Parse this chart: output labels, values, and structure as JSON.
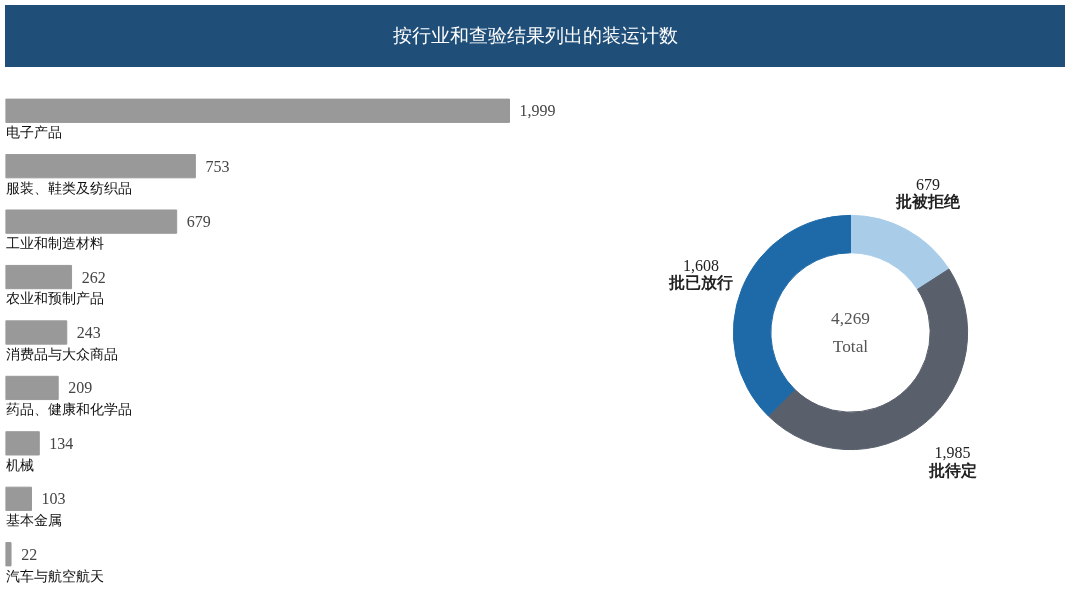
{
  "chart_data": [
    {
      "type": "bar",
      "orientation": "horizontal",
      "title": "按行业和查验结果列出的装运计数",
      "categories": [
        "电子产品",
        "服装、鞋类及纺织品",
        "工业和制造材料",
        "农业和预制产品",
        "消费品与大众商品",
        "药品、健康和化学品",
        "机械",
        "基本金属",
        "汽车与航空航天"
      ],
      "values": [
        1999,
        753,
        679,
        262,
        243,
        209,
        134,
        103,
        22
      ],
      "value_labels": [
        "1,999",
        "753",
        "679",
        "262",
        "243",
        "209",
        "134",
        "103",
        "22"
      ],
      "color": "#999999"
    },
    {
      "type": "donut",
      "categories": [
        "批被拒绝",
        "批待定",
        "批已放行"
      ],
      "values": [
        679,
        1985,
        1608
      ],
      "colors": [
        "#a9cde9",
        "#59606c",
        "#1e6aa8"
      ],
      "value_labels": [
        "679",
        "1,985",
        "1,608"
      ],
      "annotations": [
        "4,269",
        "Total"
      ]
    }
  ]
}
